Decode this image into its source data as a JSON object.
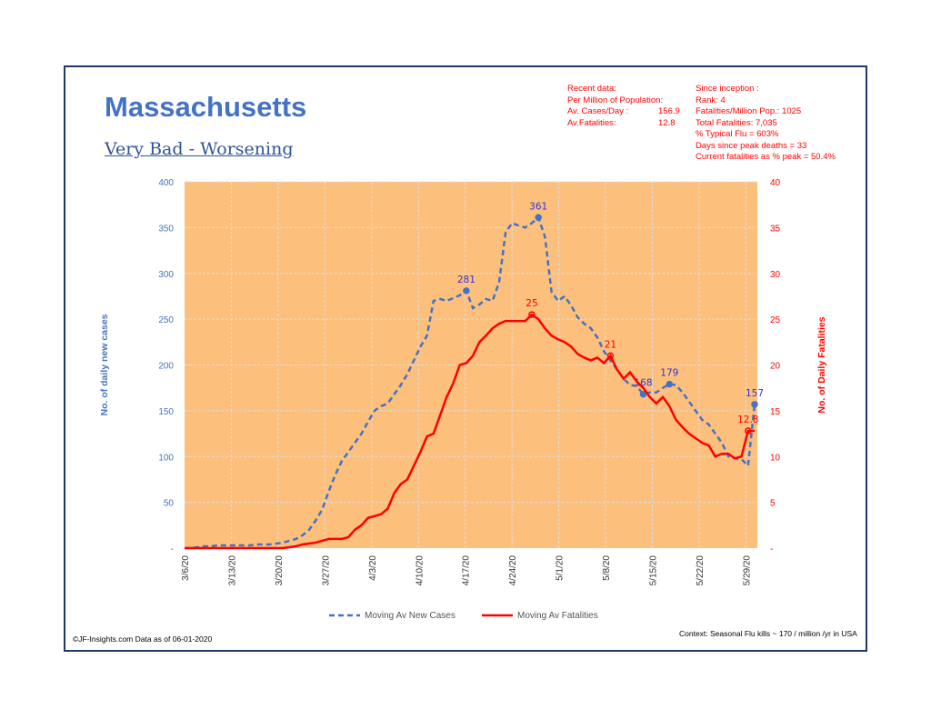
{
  "title": "Massachusetts",
  "subtitle": "Very Bad - Worsening",
  "recent": {
    "heading": "Recent data:",
    "sub": "Per Million of Population:",
    "rows": [
      {
        "label": "Av. Cases/Day :",
        "value": "156.9"
      },
      {
        "label": "Av.Fatalities:",
        "value": "12.8"
      }
    ]
  },
  "inception": [
    "Since inception :",
    "Rank: 4",
    "Fatalities/Million Pop.: 1025",
    "Total Fatalities: 7,035",
    "% Typical Flu = 603%",
    "Days since peak deaths = 33",
    "Current fatalities as % peak = 50.4%"
  ],
  "footer_left": "©JF-Insights.com   Data as of 06-01-2020",
  "footer_right": "Context: Seasonal Flu kills ~ 170 / million /yr in USA",
  "colors": {
    "cases": "#4472c4",
    "fatal": "#ff0000",
    "plot_bg": "#fdc07c",
    "label_cases": "#3333dd"
  },
  "chart_data": {
    "type": "line",
    "ylabel": "No. of daily new  cases",
    "y2label": "No. of Daily Fatalities",
    "ylim": [
      0,
      400
    ],
    "y2lim": [
      0,
      40
    ],
    "yticks": [
      "-",
      "50",
      "100",
      "150",
      "200",
      "250",
      "300",
      "350",
      "400"
    ],
    "y2ticks": [
      "-",
      "5",
      "10",
      "15",
      "20",
      "25",
      "30",
      "35",
      "40"
    ],
    "xticks": [
      "3/6/20",
      "3/13/20",
      "3/20/20",
      "3/27/20",
      "4/3/20",
      "4/10/20",
      "4/17/20",
      "4/24/20",
      "5/1/20",
      "5/8/20",
      "5/15/20",
      "5/22/20",
      "5/29/20"
    ],
    "start_date": "3/6/20",
    "series": [
      {
        "name": "Moving Av New Cases",
        "axis": "left",
        "values": [
          0,
          0,
          1,
          2,
          2,
          3,
          3,
          3,
          3,
          3,
          3,
          4,
          4,
          4,
          5,
          6,
          8,
          10,
          14,
          20,
          30,
          42,
          62,
          80,
          95,
          105,
          115,
          125,
          138,
          150,
          155,
          158,
          168,
          178,
          190,
          205,
          220,
          232,
          270,
          272,
          270,
          273,
          276,
          281,
          262,
          266,
          272,
          270,
          290,
          345,
          355,
          352,
          350,
          355,
          361,
          340,
          280,
          270,
          275,
          265,
          252,
          245,
          240,
          230,
          215,
          205,
          195,
          185,
          178,
          177,
          168,
          170,
          170,
          175,
          179,
          178,
          170,
          160,
          150,
          140,
          135,
          125,
          115,
          100,
          98,
          97,
          90,
          157
        ],
        "labels": [
          {
            "i": 43,
            "text": "281"
          },
          {
            "i": 54,
            "text": "361"
          },
          {
            "i": 70,
            "text": "168"
          },
          {
            "i": 74,
            "text": "179"
          },
          {
            "i": 87,
            "text": "157"
          }
        ]
      },
      {
        "name": "Moving Av Fatalities",
        "axis": "right",
        "values": [
          0,
          0,
          0,
          0,
          0,
          0,
          0,
          0,
          0,
          0,
          0,
          0,
          0,
          0,
          0,
          0,
          0.1,
          0.2,
          0.4,
          0.5,
          0.6,
          0.8,
          1,
          1,
          1,
          1.2,
          2,
          2.5,
          3.3,
          3.5,
          3.7,
          4.3,
          6,
          7,
          7.5,
          9,
          10.5,
          12.2,
          12.5,
          14.5,
          16.5,
          18,
          20,
          20.2,
          21,
          22.5,
          23.2,
          24,
          24.5,
          24.8,
          24.8,
          24.8,
          24.8,
          25.5,
          25,
          24,
          23.2,
          22.8,
          22.5,
          22,
          21.2,
          20.8,
          20.5,
          20.8,
          20.2,
          21,
          19.5,
          18.5,
          19.2,
          18.2,
          17.5,
          16.5,
          15.8,
          16.5,
          15.5,
          14,
          13.2,
          12.5,
          12,
          11.5,
          11.2,
          10,
          10.3,
          10.3,
          9.8,
          10,
          12.8,
          12.8
        ],
        "labels": [
          {
            "i": 53,
            "text": "25"
          },
          {
            "i": 65,
            "text": "21"
          },
          {
            "i": 86,
            "text": "12.8"
          }
        ]
      }
    ]
  }
}
